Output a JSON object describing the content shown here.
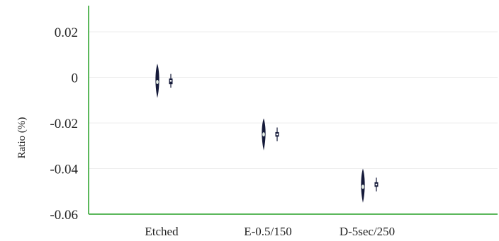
{
  "chart_data": {
    "type": "violin",
    "title": "",
    "xlabel": "",
    "ylabel": "Ratio (%)",
    "ylim": [
      -0.06,
      0.02
    ],
    "yticks": [
      0.02,
      0,
      -0.02,
      -0.04,
      -0.06
    ],
    "ytick_labels": [
      "0.02",
      "0",
      "-0.02",
      "-0.04",
      "-0.06"
    ],
    "categories": [
      "Etched",
      "E-0.5/150",
      "D-5sec/250"
    ],
    "grid": true,
    "colors": {
      "axis": "#5cb85c",
      "grid": "#eeeeee",
      "violin": "#151a3a",
      "marker": "#e8f2e8"
    },
    "groups": [
      {
        "category": "Etched",
        "violin": {
          "min": -0.009,
          "max": 0.006,
          "center": -0.002
        },
        "box": {
          "min": -0.0045,
          "q1": -0.003,
          "median": -0.0015,
          "q3": -0.0005,
          "max": 0.0015
        }
      },
      {
        "category": "E-0.5/150",
        "violin": {
          "min": -0.032,
          "max": -0.018,
          "center": -0.025
        },
        "box": {
          "min": -0.028,
          "q1": -0.026,
          "median": -0.025,
          "q3": -0.024,
          "max": -0.022
        }
      },
      {
        "category": "D-5sec/250",
        "violin": {
          "min": -0.055,
          "max": -0.04,
          "center": -0.048
        },
        "box": {
          "min": -0.05,
          "q1": -0.048,
          "median": -0.047,
          "q3": -0.046,
          "max": -0.044
        }
      }
    ]
  }
}
